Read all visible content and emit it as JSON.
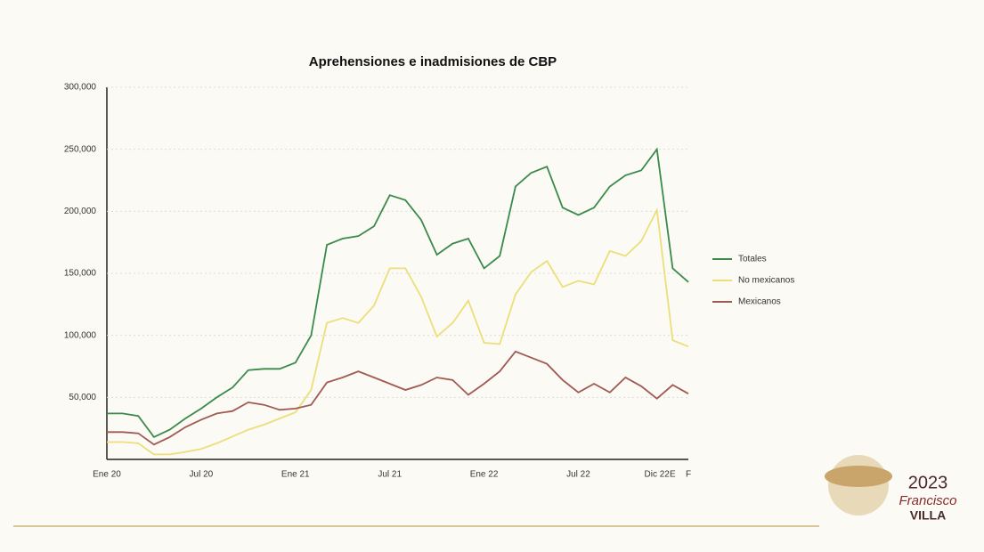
{
  "chart_data": {
    "type": "line",
    "title": "Aprehensiones e inadmisiones de CBP",
    "categories": [
      "Ene 20",
      null,
      null,
      null,
      null,
      null,
      "Jul 20",
      null,
      null,
      null,
      null,
      null,
      "Ene 21",
      null,
      null,
      null,
      null,
      null,
      "Jul 21",
      null,
      null,
      null,
      null,
      null,
      "Ene 22",
      null,
      null,
      null,
      null,
      null,
      "Jul 22",
      null,
      null,
      null,
      null,
      "Dic 22",
      "E",
      "F"
    ],
    "series": [
      {
        "name": "Totales",
        "color": "#3a8a4a",
        "values": [
          37000,
          37000,
          35000,
          18000,
          24000,
          33000,
          41000,
          50000,
          58000,
          72000,
          73000,
          73000,
          78000,
          100000,
          173000,
          178000,
          180000,
          188000,
          213000,
          209000,
          193000,
          165000,
          174000,
          178000,
          154000,
          164000,
          220000,
          231000,
          236000,
          203000,
          197000,
          203000,
          220000,
          229000,
          233000,
          250000,
          154000,
          143000
        ]
      },
      {
        "name": "No mexicanos",
        "color": "#ecdf7a",
        "values": [
          14000,
          14000,
          13000,
          4000,
          4000,
          6000,
          8500,
          13000,
          18500,
          24000,
          28000,
          33000,
          38000,
          56000,
          110000,
          114000,
          110000,
          124000,
          154000,
          154000,
          131000,
          99000,
          110000,
          128000,
          94000,
          93000,
          133000,
          151000,
          160000,
          139000,
          144000,
          141000,
          168000,
          164000,
          176000,
          201000,
          96000,
          91000
        ]
      },
      {
        "name": "Mexicanos",
        "color": "#a05a52",
        "values": [
          22000,
          22000,
          21000,
          12000,
          18000,
          26000,
          32000,
          37000,
          39000,
          46000,
          44000,
          40000,
          41000,
          44000,
          62000,
          66000,
          71000,
          66000,
          61000,
          56000,
          60000,
          66000,
          64000,
          52000,
          61000,
          71000,
          87000,
          82000,
          77000,
          64000,
          54000,
          61000,
          54000,
          66000,
          59000,
          49000,
          60000,
          53000
        ]
      }
    ],
    "ylim": [
      0,
      300000
    ],
    "yticks": [
      {
        "value": 50000,
        "label": "50,000"
      },
      {
        "value": 100000,
        "label": "100,000"
      },
      {
        "value": 150000,
        "label": "150,000"
      },
      {
        "value": 200000,
        "label": "200,000"
      },
      {
        "value": 250000,
        "label": "250,000"
      },
      {
        "value": 300000,
        "label": "300,000"
      }
    ],
    "grid": true,
    "legend": "right"
  },
  "branding": {
    "year": "2023",
    "name": "Francisco",
    "surname": "VILLA"
  }
}
